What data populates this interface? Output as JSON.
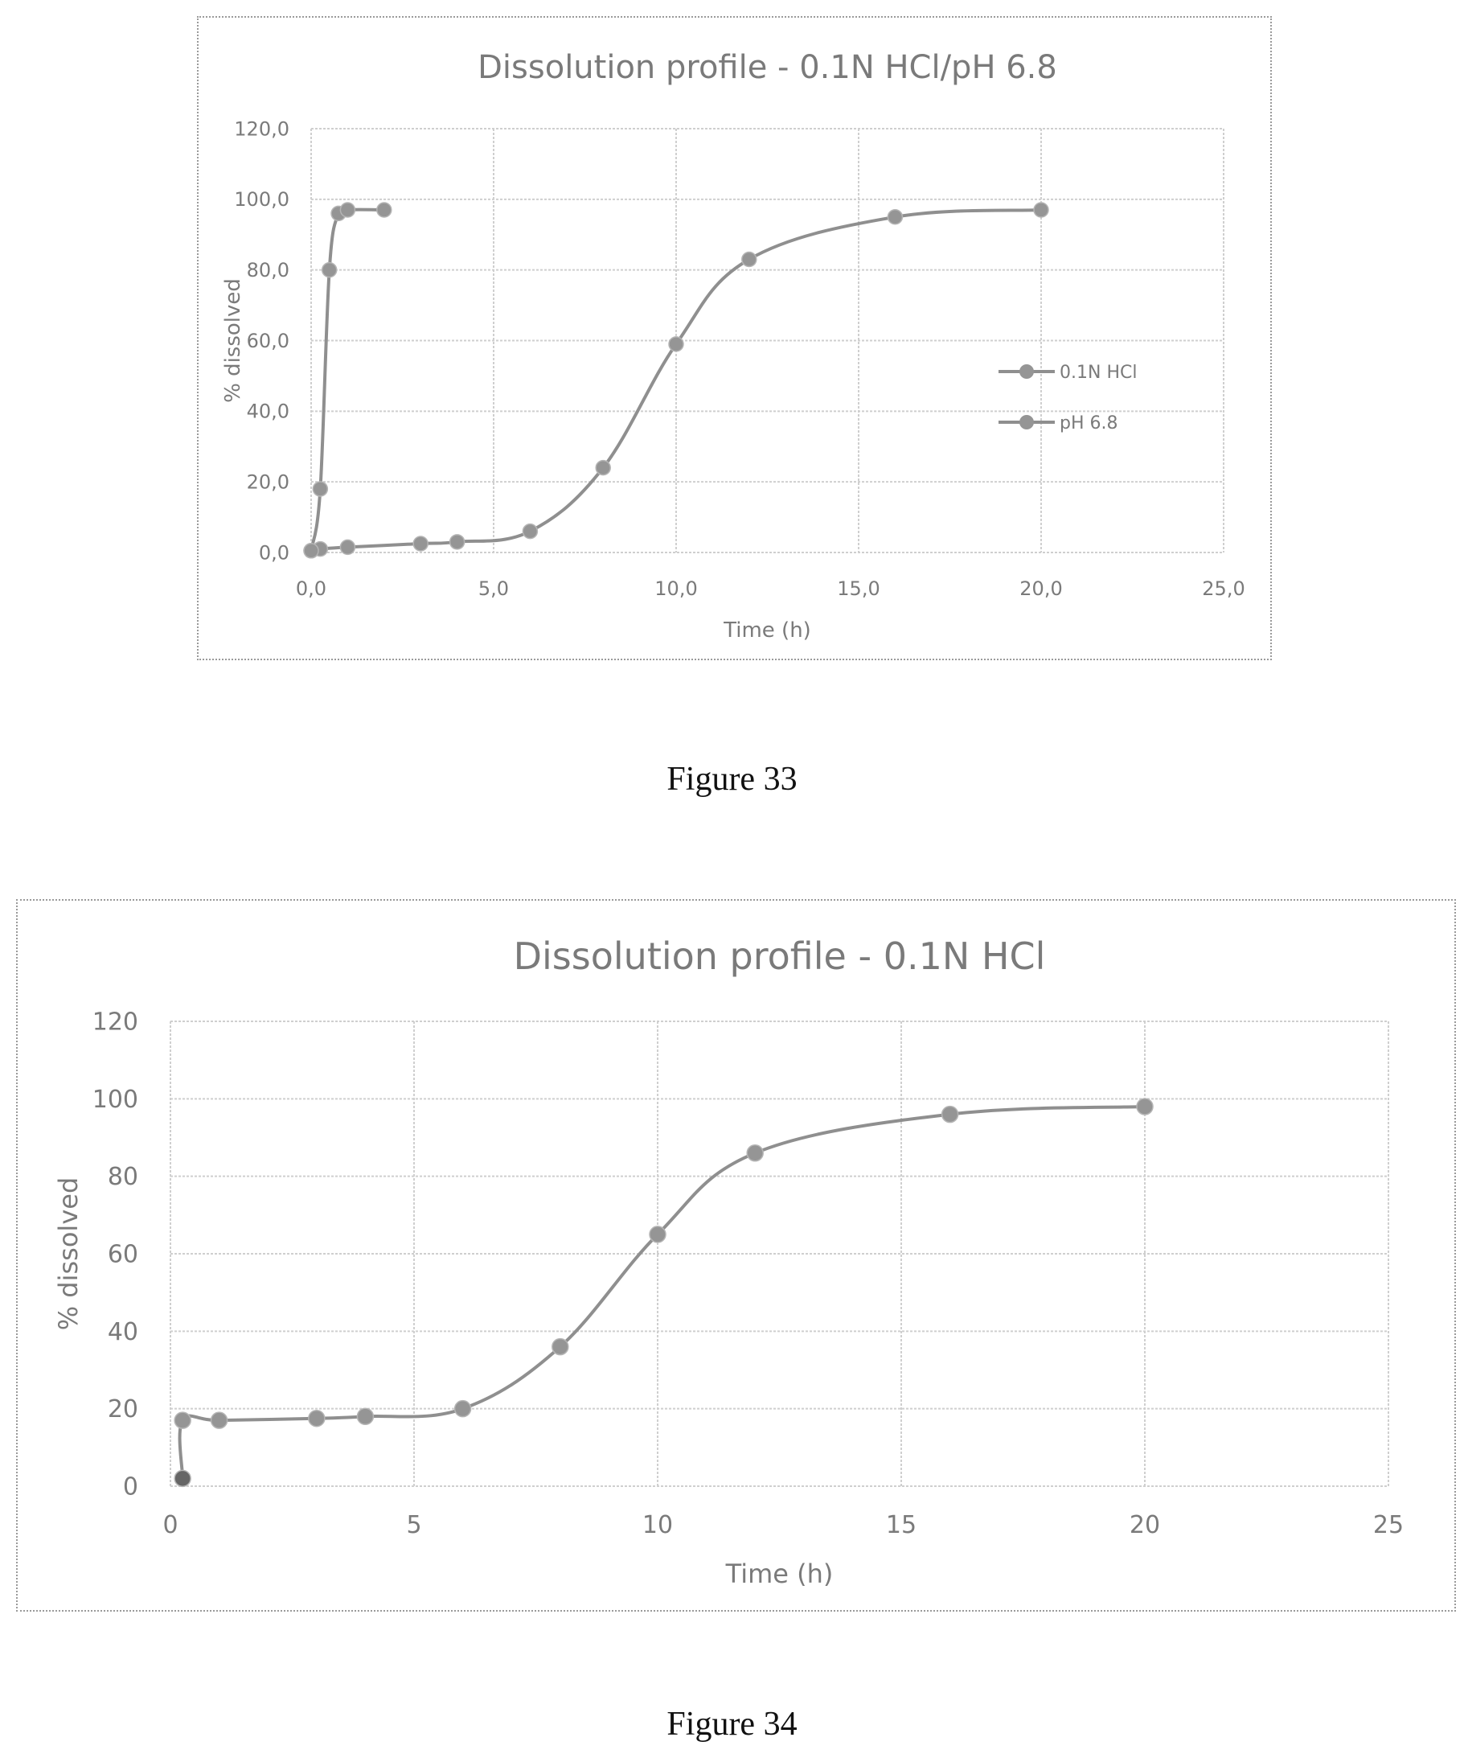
{
  "figures": [
    {
      "caption": "Figure 33"
    },
    {
      "caption": "Figure 34"
    }
  ],
  "colors": {
    "series_line": "#8f8f8f",
    "series_marker": "#959595",
    "first_point": "#666666",
    "grid": "#cfcfcf",
    "text": "#7a7a7a"
  },
  "chart_data": [
    {
      "type": "line",
      "title": "Dissolution profile - 0.1N HCl/pH 6.8",
      "xlabel": "Time (h)",
      "ylabel": "% dissolved",
      "xlim": [
        0,
        25
      ],
      "ylim": [
        0,
        120
      ],
      "x_ticks": [
        "0,0",
        "5,0",
        "10,0",
        "15,0",
        "20,0",
        "25,0"
      ],
      "y_ticks": [
        "0,0",
        "20,0",
        "40,0",
        "60,0",
        "80,0",
        "100,0",
        "120,0"
      ],
      "grid": true,
      "legend_position": "right",
      "smooth": true,
      "series": [
        {
          "name": "0.1N HCl",
          "x": [
            0,
            0.25,
            1,
            3,
            4,
            6,
            8,
            10,
            12,
            16,
            20
          ],
          "y": [
            0.5,
            1,
            1.5,
            2.5,
            3,
            6,
            24,
            59,
            83,
            95,
            97
          ]
        },
        {
          "name": "pH 6.8",
          "x": [
            0,
            0.25,
            0.5,
            0.75,
            1,
            2
          ],
          "y": [
            0.5,
            18,
            80,
            96,
            97,
            97
          ]
        }
      ]
    },
    {
      "type": "line",
      "title": "Dissolution profile - 0.1N HCl",
      "xlabel": "Time (h)",
      "ylabel": "% dissolved",
      "xlim": [
        0,
        25
      ],
      "ylim": [
        0,
        120
      ],
      "x_ticks": [
        "0",
        "5",
        "10",
        "15",
        "20",
        "25"
      ],
      "y_ticks": [
        "0",
        "20",
        "40",
        "60",
        "80",
        "100",
        "120"
      ],
      "grid": true,
      "smooth": true,
      "series": [
        {
          "x": [
            0.25,
            0.25,
            1,
            3,
            4,
            6,
            8,
            10,
            12,
            16,
            20
          ],
          "y": [
            2,
            17,
            17,
            17.5,
            18,
            20,
            36,
            65,
            86,
            96,
            98
          ]
        }
      ]
    }
  ]
}
